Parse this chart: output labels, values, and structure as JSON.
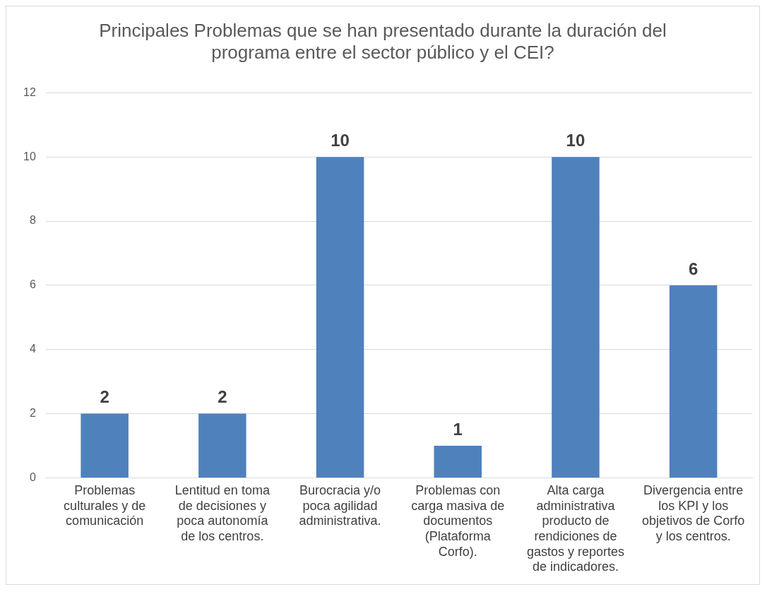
{
  "chart_data": {
    "type": "bar",
    "title": "Principales Problemas que se han presentado durante la duración del programa entre el sector público y el CEI?",
    "categories": [
      "Problemas culturales y de comunicación",
      "Lentitud en toma de decisiones y poca autonomía de los centros.",
      "Burocracia y/o poca agilidad administrativa.",
      "Problemas con carga masiva de documentos (Plataforma Corfo).",
      "Alta carga administrativa producto de rendiciones de gastos y reportes de indicadores.",
      "Divergencia entre los KPI y los objetivos de Corfo y los centros."
    ],
    "values": [
      2,
      2,
      10,
      1,
      10,
      6
    ],
    "color": "#4f81bd",
    "ylim": [
      0,
      12
    ],
    "yticks": [
      0,
      2,
      4,
      6,
      8,
      10,
      12
    ],
    "grid": "y",
    "data_labels": true,
    "legend": false
  }
}
